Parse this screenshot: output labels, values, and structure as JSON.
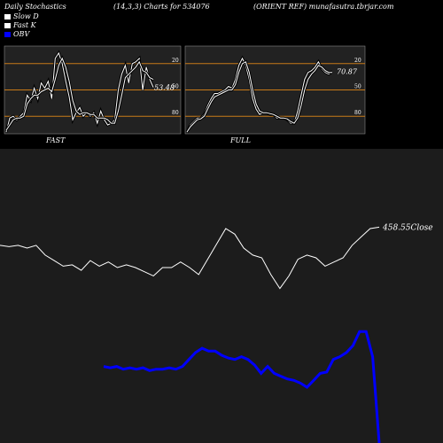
{
  "header": {
    "left": "Daily Stochastics",
    "center": "(14,3,3) Charts for 534076",
    "right": "(ORIENT REF) munafasutra.tbrjar.com"
  },
  "legend": [
    {
      "label": "Slow  D",
      "color": "#ffffff"
    },
    {
      "label": "Fast K",
      "color": "#ffffff"
    },
    {
      "label": "OBV",
      "color": "#0000ff"
    }
  ],
  "chart_data": [
    {
      "type": "line",
      "panel": "FAST",
      "ylim": [
        0,
        100
      ],
      "gridlines": [
        20,
        50,
        80
      ],
      "tick_labels": [
        "80",
        "50",
        "20"
      ],
      "last_value_label": "53.48",
      "series": [
        {
          "values": [
            2,
            18,
            20,
            16,
            20,
            24,
            44,
            38,
            52,
            40,
            58,
            52,
            60,
            40,
            86,
            92,
            80,
            60,
            42,
            16,
            24,
            30,
            20,
            24,
            20,
            24,
            12,
            26,
            16,
            10,
            12,
            16,
            50,
            68,
            78,
            58,
            80,
            82,
            86,
            50,
            76,
            62,
            53
          ]
        },
        {
          "values": [
            4,
            10,
            16,
            18,
            18,
            20,
            34,
            40,
            44,
            44,
            48,
            50,
            52,
            48,
            62,
            78,
            86,
            76,
            60,
            38,
            26,
            22,
            24,
            24,
            22,
            22,
            18,
            18,
            18,
            16,
            12,
            12,
            26,
            44,
            64,
            68,
            72,
            76,
            82,
            72,
            70,
            64,
            62
          ]
        }
      ]
    },
    {
      "type": "line",
      "panel": "FULL",
      "ylim": [
        0,
        100
      ],
      "gridlines": [
        20,
        50,
        80
      ],
      "tick_labels": [
        "80",
        "50",
        "20"
      ],
      "last_value_label": "70.87",
      "series": [
        {
          "values": [
            2,
            10,
            14,
            18,
            18,
            22,
            32,
            40,
            46,
            46,
            48,
            50,
            54,
            52,
            62,
            78,
            86,
            78,
            62,
            40,
            28,
            22,
            24,
            24,
            22,
            22,
            18,
            18,
            18,
            16,
            12,
            12,
            26,
            44,
            62,
            70,
            72,
            76,
            82,
            74,
            70,
            68,
            71
          ]
        },
        {
          "values": [
            2,
            8,
            12,
            16,
            17,
            20,
            28,
            36,
            42,
            44,
            46,
            48,
            50,
            50,
            56,
            70,
            80,
            82,
            70,
            50,
            34,
            26,
            24,
            24,
            23,
            22,
            20,
            18,
            18,
            17,
            14,
            12,
            18,
            32,
            50,
            62,
            68,
            72,
            78,
            76,
            72,
            70,
            70
          ]
        }
      ]
    },
    {
      "type": "line",
      "panel": "PRICE-OBV",
      "price_label": "458.55",
      "price_label_suffix": "Close",
      "series": [
        {
          "name": "Price",
          "values": [
            392,
            391,
            392,
            390,
            392,
            385,
            381,
            377,
            378,
            374,
            381,
            377,
            380,
            376,
            378,
            376,
            373,
            370,
            376,
            376,
            380,
            376,
            371,
            382,
            393,
            404,
            400,
            390,
            385,
            383,
            371,
            361,
            370,
            382,
            385,
            383,
            377,
            380,
            383,
            392,
            398,
            404,
            405
          ]
        },
        {
          "name": "OBV",
          "values": [
            305,
            304,
            305,
            303,
            304,
            303,
            304,
            302,
            303,
            303,
            304,
            303,
            305,
            310,
            315,
            318,
            316,
            316,
            313,
            311,
            310,
            312,
            310,
            306,
            300,
            305,
            300,
            298,
            296,
            295,
            293,
            290,
            295,
            300,
            301,
            310,
            312,
            315,
            320,
            330,
            330,
            312,
            250
          ]
        }
      ]
    }
  ],
  "panel_labels": {
    "fast": "FAST",
    "full": "FULL"
  }
}
